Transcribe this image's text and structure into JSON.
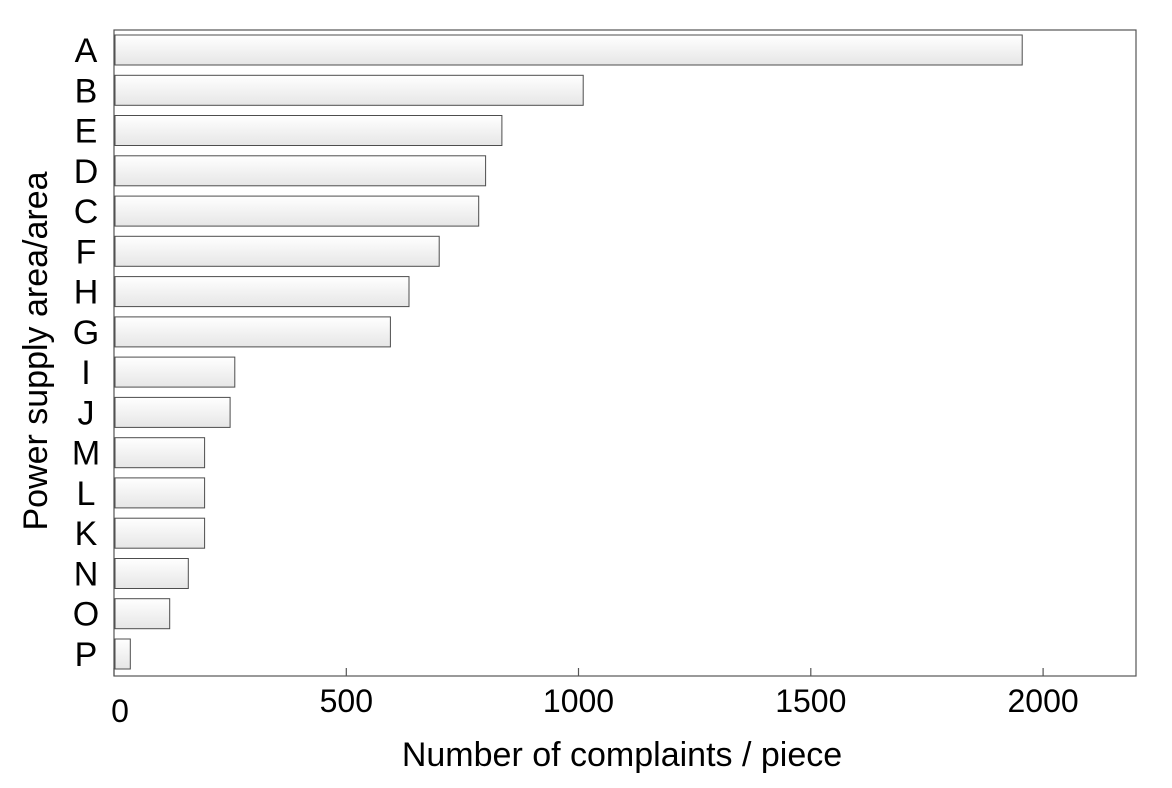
{
  "chart_data": {
    "type": "bar",
    "orientation": "horizontal",
    "title": "",
    "xlabel": "Number of complaints / piece",
    "ylabel": "Power supply area/area",
    "categories": [
      "A",
      "B",
      "E",
      "D",
      "C",
      "F",
      "H",
      "G",
      "I",
      "J",
      "M",
      "L",
      "K",
      "N",
      "O",
      "P"
    ],
    "values": [
      1955,
      1010,
      835,
      800,
      785,
      700,
      635,
      595,
      260,
      250,
      195,
      195,
      195,
      160,
      120,
      35
    ],
    "xlim": [
      0,
      2200
    ],
    "xticks": [
      0,
      500,
      1000,
      1500,
      2000
    ],
    "xtick_labels": [
      "0",
      "500",
      "1000",
      "1500",
      "2000"
    ],
    "grid": false,
    "legend": "none",
    "colors": {
      "bar_fill_light": "#ffffff",
      "bar_fill_dark": "#e6e6e6",
      "bar_stroke": "#4d4d4d",
      "axis": "#555555"
    }
  }
}
